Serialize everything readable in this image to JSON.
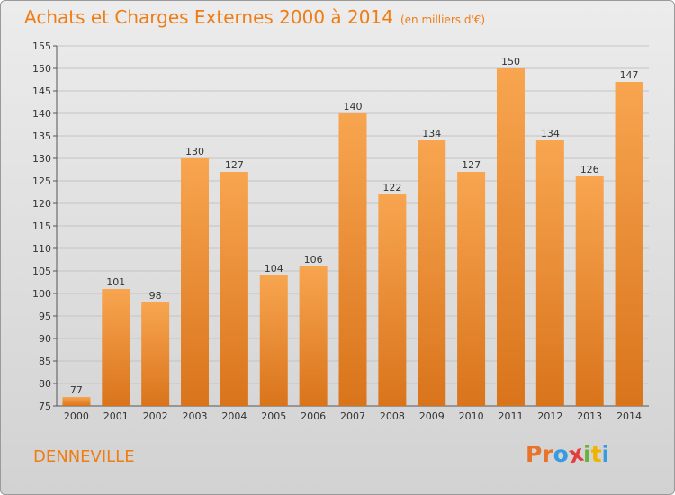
{
  "header": {
    "title": "Achats et Charges Externes 2000 à 2014",
    "subtitle": "(en milliers d'€)"
  },
  "footer": {
    "location": "DENNEVILLE",
    "logo": [
      "P",
      "r",
      "o",
      "x",
      "i",
      "t",
      "i"
    ]
  },
  "colors": {
    "title": "#f07c14",
    "bar_light": "#f8a550",
    "bar_dark": "#d9741b",
    "logo": [
      "#e8732a",
      "#e8732a",
      "#3a9adf",
      "#e43d3d",
      "#6ab23e",
      "#f0b400",
      "#3a9adf"
    ]
  },
  "chart_data": {
    "type": "bar",
    "categories": [
      "2000",
      "2001",
      "2002",
      "2003",
      "2004",
      "2005",
      "2006",
      "2007",
      "2008",
      "2009",
      "2010",
      "2011",
      "2012",
      "2013",
      "2014"
    ],
    "values": [
      77,
      101,
      98,
      130,
      127,
      104,
      106,
      140,
      122,
      134,
      127,
      150,
      134,
      126,
      147
    ],
    "data_labels": [
      "77",
      "101",
      "98",
      "130",
      "127",
      "104",
      "106",
      "140",
      "122",
      "134",
      "127",
      "150",
      "134",
      "126",
      "147"
    ],
    "title": "Achats et Charges Externes 2000 à 2014",
    "xlabel": "",
    "ylabel": "",
    "ylim": [
      75,
      155
    ],
    "yticks": [
      "75",
      "80",
      "85",
      "90",
      "95",
      "100",
      "105",
      "110",
      "115",
      "120",
      "125",
      "130",
      "135",
      "140",
      "145",
      "150",
      "155"
    ],
    "grid": true
  }
}
